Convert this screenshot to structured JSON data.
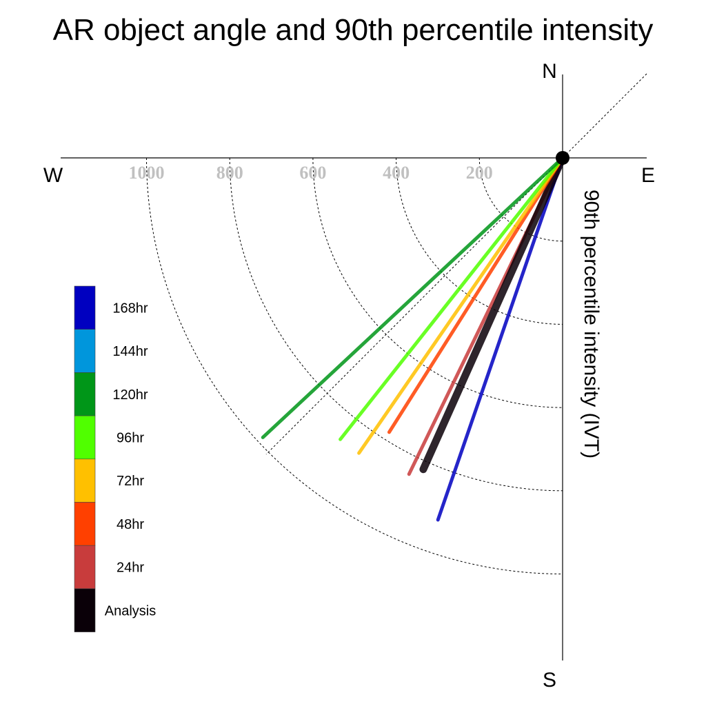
{
  "chart_data": {
    "type": "polar-vector",
    "title": "AR object angle and 90th percentile intensity",
    "ylabel": "90th percentile intensity (IVT)",
    "compass": {
      "north": "N",
      "south": "S",
      "east": "E",
      "west": "W"
    },
    "rings": [
      200,
      400,
      600,
      800,
      1000
    ],
    "tick_labels": [
      "1000",
      "800",
      "600",
      "400",
      "200"
    ],
    "legend": [
      "168hr",
      "144hr",
      "120hr",
      "96hr",
      "72hr",
      "48hr",
      "24hr",
      "Analysis"
    ],
    "series": [
      {
        "name": "168hr",
        "color": "#0000c0",
        "angle_deg": 199.0,
        "intensity": 920
      },
      {
        "name": "24hr",
        "color": "#c83c3c",
        "angle_deg": 205.9,
        "intensity": 845
      },
      {
        "name": "Analysis",
        "color": "#0a0008",
        "angle_deg": 204.1,
        "intensity": 820
      },
      {
        "name": "48hr",
        "color": "#ff4000",
        "angle_deg": 212.3,
        "intensity": 780
      },
      {
        "name": "72hr",
        "color": "#ffc000",
        "angle_deg": 214.6,
        "intensity": 862
      },
      {
        "name": "96hr",
        "color": "#50ff00",
        "angle_deg": 218.3,
        "intensity": 862
      },
      {
        "name": "120hr",
        "color": "#009618",
        "angle_deg": 227.0,
        "intensity": 985
      }
    ],
    "legend_colors": [
      "#0000c0",
      "#0096dc",
      "#009618",
      "#50ff00",
      "#ffc000",
      "#ff4000",
      "#c83c3c",
      "#0a0008"
    ]
  }
}
